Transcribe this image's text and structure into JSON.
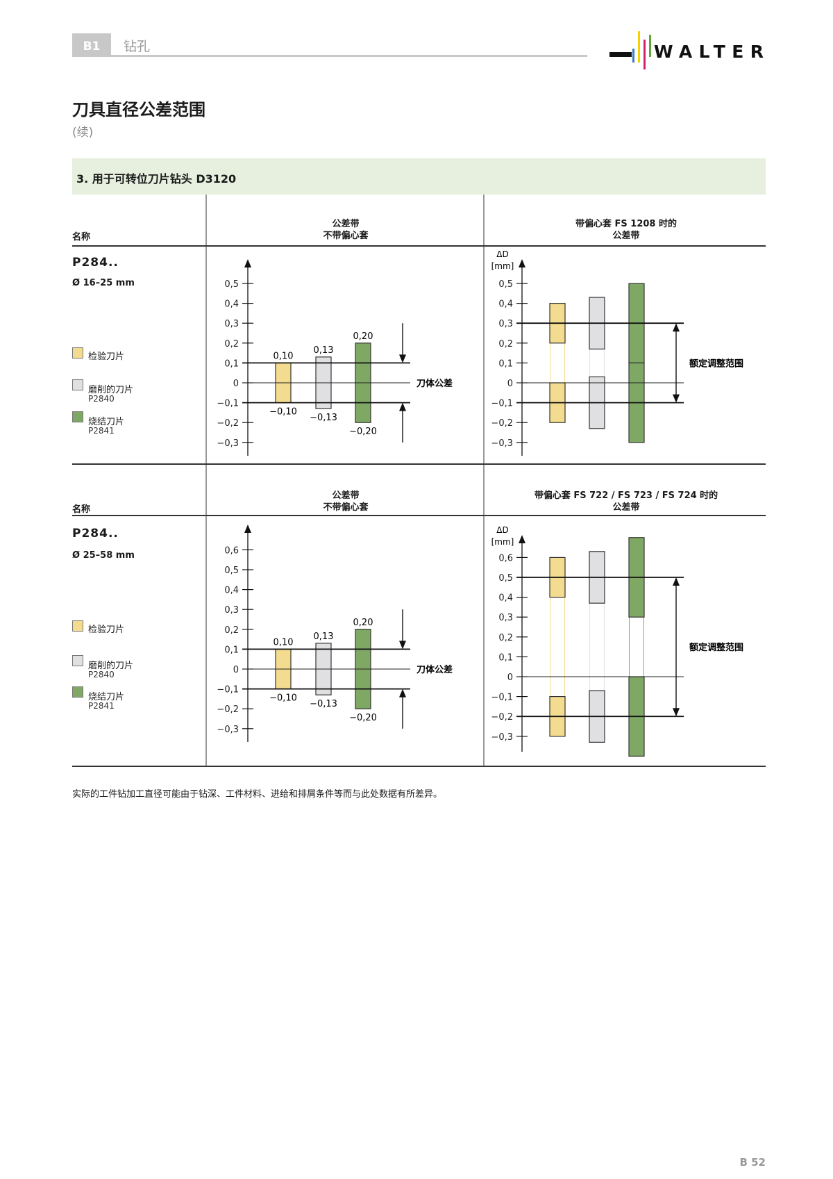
{
  "header": {
    "tag": "B1",
    "section": "钻孔",
    "logo_text": "WALTER"
  },
  "title": "刀具直径公差范围",
  "subtitle": "(续)",
  "band_title": "3. 用于可转位刀片钻头 D3120",
  "colors": {
    "inspection": "#f3dc8f",
    "ground": "#e0e0e2",
    "sintered": "#80a865",
    "band": "#e7f0de"
  },
  "sections": [
    {
      "name_header": "名称",
      "col2_header": [
        "公差带",
        "不带偏心套"
      ],
      "col3_header": [
        "带偏心套 FS 1208 时的",
        "公差带"
      ],
      "product": "P284..",
      "diameter": "Ø 16–25 mm"
    },
    {
      "name_header": "名称",
      "col2_header": [
        "公差带",
        "不带偏心套"
      ],
      "col3_header": [
        "带偏心套 FS 722 / FS 723 / FS 724 时的",
        "公差带"
      ],
      "product": "P284..",
      "diameter": "Ø 25–58 mm"
    }
  ],
  "legend": [
    {
      "label": "检验刀片",
      "sub": "",
      "color": "#f3dc8f"
    },
    {
      "label": "磨削的刀片",
      "sub": "P2840",
      "color": "#e0e0e2"
    },
    {
      "label": "烧结刀片",
      "sub": "P2841",
      "color": "#80a865"
    }
  ],
  "chart_data": [
    {
      "type": "bar",
      "categories": [
        "检验刀片",
        "磨削的刀片",
        "烧结刀片"
      ],
      "ylabel": "",
      "ylim": [
        -0.3,
        0.5
      ],
      "yticks": [
        0.5,
        0.4,
        0.3,
        0.2,
        0.1,
        0,
        -0.1,
        -0.2,
        -0.3
      ],
      "ytick_labels": [
        "0,5",
        "0,4",
        "0,3",
        "0,2",
        "0,1",
        "0",
        "−0,1",
        "−0,2",
        "−0,3"
      ],
      "bars": [
        {
          "segments": [
            [
              -0.1,
              0.1
            ]
          ],
          "upper_label": "0,10",
          "lower_label": "−0,10"
        },
        {
          "segments": [
            [
              -0.13,
              0.13
            ]
          ],
          "upper_label": "0,13",
          "lower_label": "−0,13"
        },
        {
          "segments": [
            [
              -0.2,
              0.2
            ]
          ],
          "upper_label": "0,20",
          "lower_label": "−0,20"
        }
      ],
      "reference_lines": [
        0.1,
        -0.1
      ],
      "annotation": "刀体公差"
    },
    {
      "type": "bar",
      "categories": [
        "检验刀片",
        "磨削的刀片",
        "烧结刀片"
      ],
      "ylabel": "ΔD",
      "yunit": "[mm]",
      "ylim": [
        -0.3,
        0.5
      ],
      "yticks": [
        0.5,
        0.4,
        0.3,
        0.2,
        0.1,
        0,
        -0.1,
        -0.2,
        -0.3
      ],
      "ytick_labels": [
        "0,5",
        "0,4",
        "0,3",
        "0,2",
        "0,1",
        "0",
        "−0,1",
        "−0,2",
        "−0,3"
      ],
      "bars": [
        {
          "segments": [
            [
              0.2,
              0.4
            ],
            [
              -0.2,
              0.0
            ]
          ]
        },
        {
          "segments": [
            [
              0.17,
              0.43
            ],
            [
              -0.23,
              0.03
            ]
          ]
        },
        {
          "segments": [
            [
              0.1,
              0.5
            ],
            [
              -0.3,
              0.1
            ]
          ]
        }
      ],
      "reference_lines": [
        0.3,
        -0.1
      ],
      "annotation": "额定调整范围"
    },
    {
      "type": "bar",
      "categories": [
        "检验刀片",
        "磨削的刀片",
        "烧结刀片"
      ],
      "ylabel": "",
      "ylim": [
        -0.3,
        0.6
      ],
      "yticks": [
        0.6,
        0.5,
        0.4,
        0.3,
        0.2,
        0.1,
        0,
        -0.1,
        -0.2,
        -0.3
      ],
      "ytick_labels": [
        "0,6",
        "0,5",
        "0,4",
        "0,3",
        "0,2",
        "0,1",
        "0",
        "−0,1",
        "−0,2",
        "−0,3"
      ],
      "bars": [
        {
          "segments": [
            [
              -0.1,
              0.1
            ]
          ],
          "upper_label": "0,10",
          "lower_label": "−0,10"
        },
        {
          "segments": [
            [
              -0.13,
              0.13
            ]
          ],
          "upper_label": "0,13",
          "lower_label": "−0,13"
        },
        {
          "segments": [
            [
              -0.2,
              0.2
            ]
          ],
          "upper_label": "0,20",
          "lower_label": "−0,20"
        }
      ],
      "reference_lines": [
        0.1,
        -0.1
      ],
      "annotation": "刀体公差"
    },
    {
      "type": "bar",
      "categories": [
        "检验刀片",
        "磨削的刀片",
        "烧结刀片"
      ],
      "ylabel": "ΔD",
      "yunit": "[mm]",
      "ylim": [
        -0.3,
        0.6
      ],
      "yticks": [
        0.6,
        0.5,
        0.4,
        0.3,
        0.2,
        0.1,
        0,
        -0.1,
        -0.2,
        -0.3
      ],
      "ytick_labels": [
        "0,6",
        "0,5",
        "0,4",
        "0,3",
        "0,2",
        "0,1",
        "0",
        "−0,1",
        "−0,2",
        "−0,3"
      ],
      "bars": [
        {
          "segments": [
            [
              0.4,
              0.6
            ],
            [
              -0.3,
              -0.1
            ]
          ]
        },
        {
          "segments": [
            [
              0.37,
              0.63
            ],
            [
              -0.33,
              -0.07
            ]
          ]
        },
        {
          "segments": [
            [
              0.3,
              0.7
            ],
            [
              -0.4,
              0.0
            ]
          ]
        }
      ],
      "reference_lines": [
        0.5,
        -0.2
      ],
      "annotation": "额定调整范围"
    }
  ],
  "footnote": "实际的工件钻加工直径可能由于钻深、工件材料、进给和排屑条件等而与此处数据有所差异。",
  "page_number": "B 52"
}
